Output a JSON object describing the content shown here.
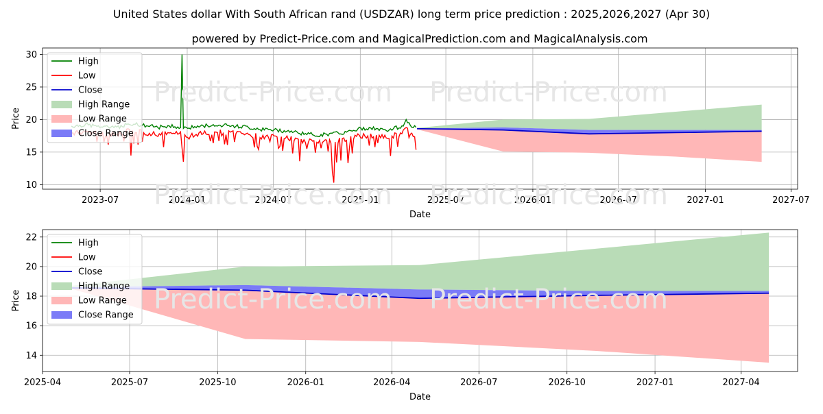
{
  "title": "United States dollar With South African rand (USDZAR) long term price prediction : 2025,2026,2027 (Apr 30)",
  "subtitle": "powered by Predict-Price.com and MagicalPrediction.com and MagicalAnalysis.com",
  "watermark": "Predict-Price.com",
  "colors": {
    "high": "#008000",
    "low": "#ff0000",
    "close": "#0000cd",
    "high_range": "#b9dcb7",
    "low_range": "#ffb7b7",
    "close_range": "#7b7bf7",
    "grid": "#b0b0b0"
  },
  "chart_data": [
    {
      "type": "line",
      "xlabel": "Date",
      "ylabel": "Price",
      "xlim": [
        "2023-03-01",
        "2027-07-15"
      ],
      "ylim": [
        9.3,
        31.0
      ],
      "x_ticks": [
        "2023-07",
        "2024-01",
        "2024-07",
        "2025-01",
        "2025-07",
        "2026-01",
        "2026-07",
        "2027-01",
        "2027-07"
      ],
      "y_ticks": [
        10,
        15,
        20,
        25,
        30
      ],
      "legend_position": "top-left",
      "grid": true,
      "legend": [
        "High",
        "Low",
        "Close",
        "High Range",
        "Low Range",
        "Close Range"
      ],
      "history": {
        "start": "2023-05-01",
        "end": "2025-05-01",
        "high_anchors": [
          [
            "2023-05-01",
            19.0
          ],
          [
            "2023-06-01",
            19.2
          ],
          [
            "2023-07-01",
            18.9
          ],
          [
            "2023-08-01",
            18.7
          ],
          [
            "2023-09-01",
            19.4
          ],
          [
            "2023-10-01",
            19.1
          ],
          [
            "2023-11-01",
            18.8
          ],
          [
            "2023-12-01",
            19.0
          ],
          [
            "2024-01-01",
            18.7
          ],
          [
            "2024-02-01",
            19.0
          ],
          [
            "2024-03-01",
            19.2
          ],
          [
            "2024-04-01",
            19.0
          ],
          [
            "2024-05-01",
            18.9
          ],
          [
            "2024-06-01",
            18.5
          ],
          [
            "2024-07-01",
            18.4
          ],
          [
            "2024-08-01",
            18.2
          ],
          [
            "2024-09-01",
            17.9
          ],
          [
            "2024-10-01",
            17.6
          ],
          [
            "2024-11-01",
            17.8
          ],
          [
            "2024-12-01",
            18.0
          ],
          [
            "2025-01-01",
            18.6
          ],
          [
            "2025-02-01",
            18.6
          ],
          [
            "2025-03-01",
            18.4
          ],
          [
            "2025-04-01",
            19.0
          ],
          [
            "2025-04-08",
            19.9
          ],
          [
            "2025-04-20",
            19.0
          ],
          [
            "2025-05-01",
            18.6
          ]
        ],
        "high_spike": {
          "date": "2023-12-22",
          "value": 30.0
        },
        "low_spikes": [
          [
            "2023-07-08",
            16.5
          ],
          [
            "2023-09-05",
            16.3
          ],
          [
            "2023-09-28",
            16.6
          ],
          [
            "2023-12-25",
            13.5
          ],
          [
            "2024-01-05",
            17.0
          ],
          [
            "2024-01-15",
            17.3
          ],
          [
            "2024-03-15",
            17.5
          ],
          [
            "2024-05-20",
            17.2
          ],
          [
            "2024-06-25",
            16.6
          ],
          [
            "2024-07-20",
            15.2
          ],
          [
            "2024-08-10",
            14.8
          ],
          [
            "2024-08-25",
            13.6
          ],
          [
            "2024-09-10",
            15.5
          ],
          [
            "2024-09-28",
            14.9
          ],
          [
            "2024-10-10",
            15.6
          ],
          [
            "2024-10-25",
            15.1
          ],
          [
            "2024-11-03",
            12.0
          ],
          [
            "2024-11-07",
            10.3
          ],
          [
            "2024-11-12",
            13.4
          ],
          [
            "2024-11-20",
            13.7
          ],
          [
            "2024-12-05",
            13.3
          ],
          [
            "2024-12-15",
            14.8
          ],
          [
            "2025-01-20",
            16.0
          ],
          [
            "2025-02-08",
            16.4
          ],
          [
            "2025-03-05",
            14.4
          ],
          [
            "2025-03-20",
            17.5
          ]
        ]
      },
      "forecast": {
        "dates": [
          "2025-05-01",
          "2025-10-30",
          "2026-04-30",
          "2026-10-30",
          "2027-04-30"
        ],
        "close": [
          18.6,
          18.4,
          17.8,
          18.0,
          18.2
        ],
        "high_range_top": [
          18.7,
          20.0,
          20.1,
          21.2,
          22.3
        ],
        "low_range_bottom": [
          18.5,
          15.1,
          14.9,
          14.3,
          13.5
        ],
        "close_range_top": [
          18.6,
          18.8,
          18.4,
          18.4,
          18.4
        ],
        "close_range_bottom": [
          18.6,
          18.4,
          17.8,
          18.0,
          18.2
        ]
      }
    },
    {
      "type": "area",
      "xlabel": "Date",
      "ylabel": "Price",
      "xlim": [
        "2025-04-01",
        "2027-05-30"
      ],
      "ylim": [
        12.9,
        22.5
      ],
      "x_ticks": [
        "2025-04",
        "2025-07",
        "2025-10",
        "2026-01",
        "2026-04",
        "2026-07",
        "2026-10",
        "2027-01",
        "2027-04"
      ],
      "y_ticks": [
        14,
        16,
        18,
        20,
        22
      ],
      "legend_position": "top-left",
      "grid": true,
      "legend": [
        "High",
        "Low",
        "Close",
        "High Range",
        "Low Range",
        "Close Range"
      ],
      "forecast": {
        "dates": [
          "2025-05-01",
          "2025-10-30",
          "2026-04-30",
          "2026-10-30",
          "2027-04-30"
        ],
        "close": [
          18.55,
          18.4,
          17.85,
          18.05,
          18.2
        ],
        "high_range_top": [
          18.7,
          20.0,
          20.1,
          21.2,
          22.3
        ],
        "low_range_bottom": [
          18.5,
          15.1,
          14.9,
          14.3,
          13.5
        ],
        "close_range_top": [
          18.6,
          18.75,
          18.45,
          18.35,
          18.35
        ],
        "close_range_bottom": [
          18.5,
          18.4,
          17.85,
          18.05,
          18.2
        ]
      }
    }
  ]
}
